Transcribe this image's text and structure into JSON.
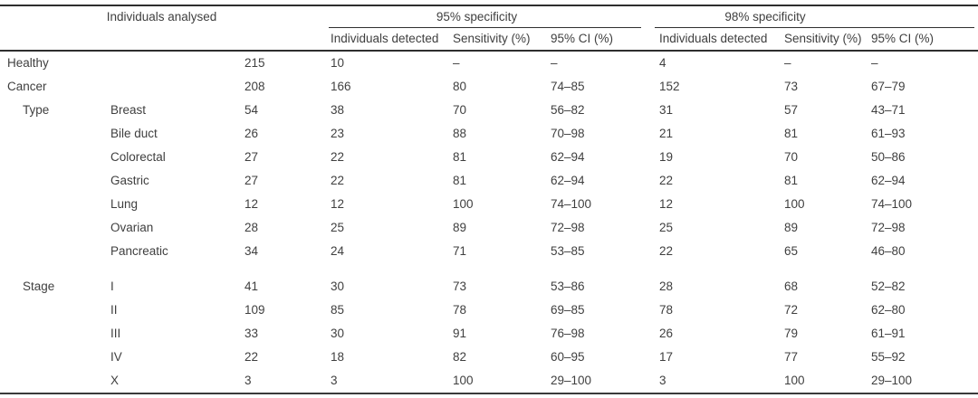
{
  "table": {
    "groups": [
      {
        "label": "Individuals analysed"
      },
      {
        "label": "95% specificity"
      },
      {
        "label": "98% specificity"
      }
    ],
    "sub_headers": [
      "Individuals detected",
      "Sensitivity (%)",
      "95% CI (%)",
      "Individuals detected",
      "Sensitivity (%)",
      "95% CI (%)"
    ],
    "rows": [
      {
        "cells": [
          "Healthy",
          "",
          "215",
          "10",
          "–",
          "–",
          "4",
          "–",
          "–"
        ]
      },
      {
        "cells": [
          "Cancer",
          "",
          "208",
          "166",
          "80",
          "74–85",
          "152",
          "73",
          "67–79"
        ]
      },
      {
        "cells": [
          "Type",
          "Breast",
          "54",
          "38",
          "70",
          "56–82",
          "31",
          "57",
          "43–71"
        ],
        "indent": true
      },
      {
        "cells": [
          "",
          "Bile duct",
          "26",
          "23",
          "88",
          "70–98",
          "21",
          "81",
          "61–93"
        ]
      },
      {
        "cells": [
          "",
          "Colorectal",
          "27",
          "22",
          "81",
          "62–94",
          "19",
          "70",
          "50–86"
        ]
      },
      {
        "cells": [
          "",
          "Gastric",
          "27",
          "22",
          "81",
          "62–94",
          "22",
          "81",
          "62–94"
        ]
      },
      {
        "cells": [
          "",
          "Lung",
          "12",
          "12",
          "100",
          "74–100",
          "12",
          "100",
          "74–100"
        ]
      },
      {
        "cells": [
          "",
          "Ovarian",
          "28",
          "25",
          "89",
          "72–98",
          "25",
          "89",
          "72–98"
        ]
      },
      {
        "cells": [
          "",
          "Pancreatic",
          "34",
          "24",
          "71",
          "53–85",
          "22",
          "65",
          "46–80"
        ]
      },
      {
        "cells": [
          "Stage",
          "I",
          "41",
          "30",
          "73",
          "53–86",
          "28",
          "68",
          "52–82"
        ],
        "indent": true,
        "gap_above": true
      },
      {
        "cells": [
          "",
          "II",
          "109",
          "85",
          "78",
          "69–85",
          "78",
          "72",
          "62–80"
        ]
      },
      {
        "cells": [
          "",
          "III",
          "33",
          "30",
          "91",
          "76–98",
          "26",
          "79",
          "61–91"
        ]
      },
      {
        "cells": [
          "",
          "IV",
          "22",
          "18",
          "82",
          "60–95",
          "17",
          "77",
          "55–92"
        ]
      },
      {
        "cells": [
          "",
          "X",
          "3",
          "3",
          "100",
          "29–100",
          "3",
          "100",
          "29–100"
        ]
      }
    ],
    "colors": {
      "text": "#3f3f3f",
      "rule": "#2e2e2e"
    }
  }
}
